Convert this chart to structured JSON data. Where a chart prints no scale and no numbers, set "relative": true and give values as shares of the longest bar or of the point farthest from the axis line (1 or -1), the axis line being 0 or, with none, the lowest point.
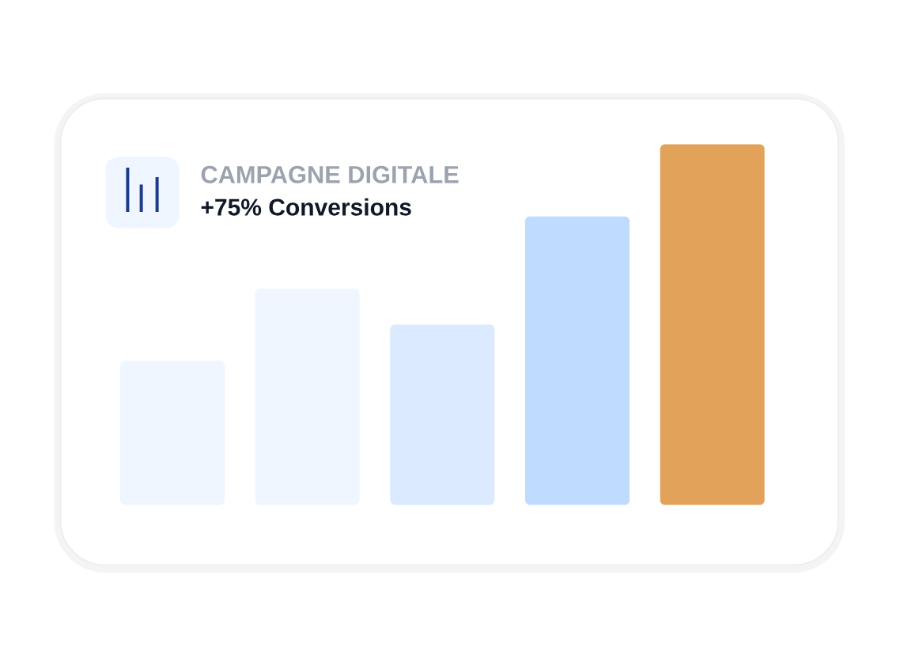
{
  "chart_data": {
    "type": "bar",
    "title": "CAMPAGNE DIGITALE",
    "subtitle": "+75% Conversions",
    "categories": [
      null,
      null,
      null,
      null,
      null
    ],
    "values": [
      0.4,
      0.6,
      0.5,
      0.8,
      1
    ],
    "colors": [
      "#eff6ff",
      "#eff6ff",
      "#dbeafe",
      "#bfdbfe",
      "#e2a25a"
    ],
    "relative": true
  }
}
